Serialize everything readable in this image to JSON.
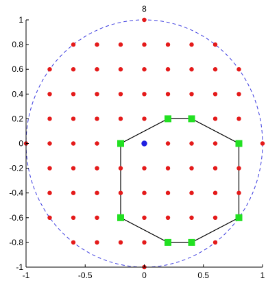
{
  "chart_data": {
    "type": "scatter",
    "title": "8",
    "xlabel": "",
    "ylabel": "",
    "xlim": [
      -1,
      1
    ],
    "ylim": [
      -1,
      1
    ],
    "grid": false,
    "x_ticks": [
      -1,
      -0.5,
      0,
      0.5,
      1
    ],
    "x_tick_labels": [
      "-1",
      "-0.5",
      "0",
      "0.5",
      "1"
    ],
    "y_ticks": [
      1,
      0.8,
      0.6,
      0.4,
      0.2,
      0,
      -0.2,
      -0.4,
      -0.6,
      -0.8,
      -1
    ],
    "y_tick_labels": [
      "1",
      "0.8",
      "0.6",
      "0.4",
      "0.2",
      "0",
      "-0.2",
      "-0.4",
      "-0.6",
      "-0.8",
      "-1"
    ],
    "circle": {
      "center": [
        0,
        0
      ],
      "radius": 1,
      "style": "dashed",
      "color": "#3a3adf"
    },
    "grid_points": {
      "color": "#e41a1a",
      "points": [
        [
          0,
          1
        ],
        [
          -0.6,
          0.8
        ],
        [
          -0.4,
          0.8
        ],
        [
          -0.2,
          0.8
        ],
        [
          0,
          0.8
        ],
        [
          0.2,
          0.8
        ],
        [
          0.4,
          0.8
        ],
        [
          0.6,
          0.8
        ],
        [
          -0.8,
          0.6
        ],
        [
          -0.6,
          0.6
        ],
        [
          -0.4,
          0.6
        ],
        [
          -0.2,
          0.6
        ],
        [
          0,
          0.6
        ],
        [
          0.2,
          0.6
        ],
        [
          0.4,
          0.6
        ],
        [
          0.6,
          0.6
        ],
        [
          0.8,
          0.6
        ],
        [
          -0.8,
          0.4
        ],
        [
          -0.6,
          0.4
        ],
        [
          -0.4,
          0.4
        ],
        [
          -0.2,
          0.4
        ],
        [
          0,
          0.4
        ],
        [
          0.2,
          0.4
        ],
        [
          0.4,
          0.4
        ],
        [
          0.6,
          0.4
        ],
        [
          0.8,
          0.4
        ],
        [
          -0.8,
          0.2
        ],
        [
          -0.6,
          0.2
        ],
        [
          -0.4,
          0.2
        ],
        [
          -0.2,
          0.2
        ],
        [
          0,
          0.2
        ],
        [
          0.6,
          0.2
        ],
        [
          0.8,
          0.2
        ],
        [
          -1,
          0
        ],
        [
          -0.8,
          0
        ],
        [
          -0.6,
          0
        ],
        [
          -0.4,
          0
        ],
        [
          0.2,
          0
        ],
        [
          0.4,
          0
        ],
        [
          0.6,
          0
        ],
        [
          1,
          0
        ],
        [
          -0.8,
          -0.2
        ],
        [
          -0.6,
          -0.2
        ],
        [
          -0.4,
          -0.2
        ],
        [
          -0.2,
          -0.2
        ],
        [
          0,
          -0.2
        ],
        [
          0.2,
          -0.2
        ],
        [
          0.4,
          -0.2
        ],
        [
          0.6,
          -0.2
        ],
        [
          0.8,
          -0.2
        ],
        [
          -0.8,
          -0.4
        ],
        [
          -0.6,
          -0.4
        ],
        [
          -0.4,
          -0.4
        ],
        [
          -0.2,
          -0.4
        ],
        [
          0,
          -0.4
        ],
        [
          0.2,
          -0.4
        ],
        [
          0.4,
          -0.4
        ],
        [
          0.6,
          -0.4
        ],
        [
          0.8,
          -0.4
        ],
        [
          -0.8,
          -0.6
        ],
        [
          -0.6,
          -0.6
        ],
        [
          -0.4,
          -0.6
        ],
        [
          0,
          -0.6
        ],
        [
          0.2,
          -0.6
        ],
        [
          0.4,
          -0.6
        ],
        [
          0.6,
          -0.6
        ],
        [
          -0.6,
          -0.8
        ],
        [
          -0.4,
          -0.8
        ],
        [
          -0.2,
          -0.8
        ],
        [
          0,
          -0.8
        ],
        [
          0.6,
          -0.8
        ],
        [
          0,
          -1
        ]
      ]
    },
    "center_point": {
      "color": "#1f1fe0",
      "point": [
        0,
        0
      ]
    },
    "polygon": {
      "color": "#000000",
      "marker_color": "#22e022",
      "vertices": [
        [
          0.2,
          0.2
        ],
        [
          0.4,
          0.2
        ],
        [
          0.8,
          0
        ],
        [
          0.8,
          -0.6
        ],
        [
          0.4,
          -0.8
        ],
        [
          0.2,
          -0.8
        ],
        [
          -0.2,
          -0.6
        ],
        [
          -0.2,
          0
        ]
      ]
    }
  }
}
